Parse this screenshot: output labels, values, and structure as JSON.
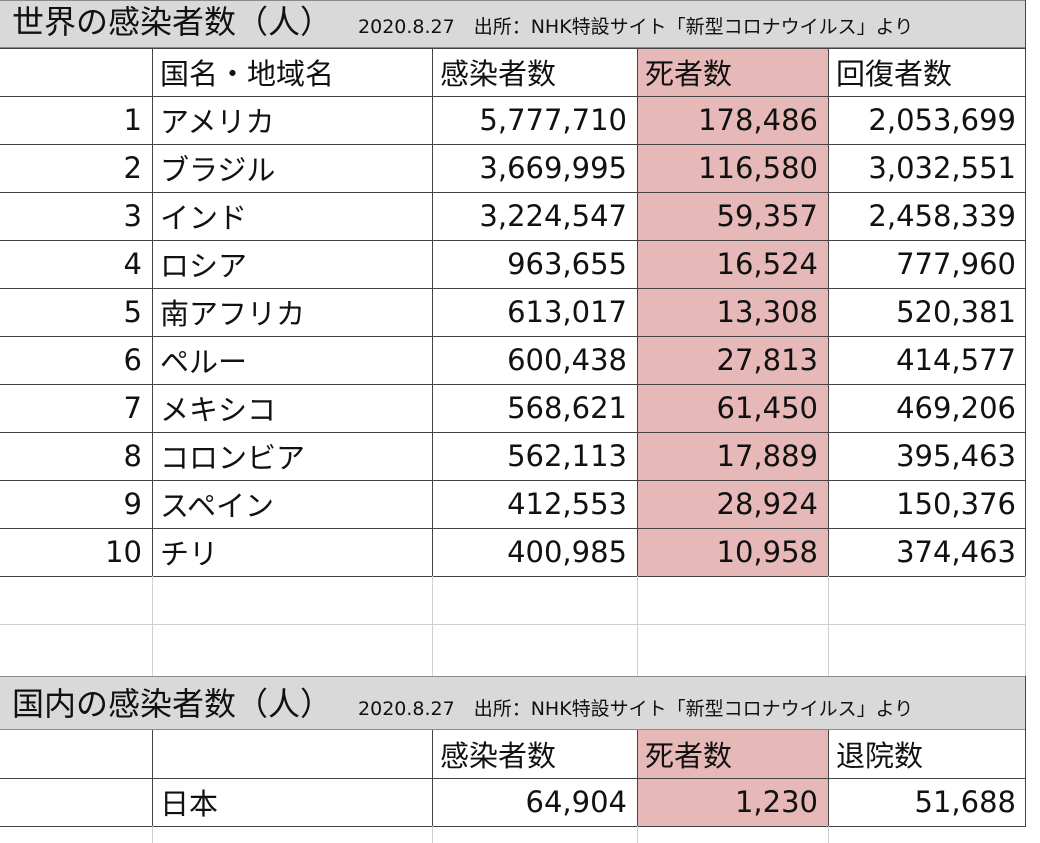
{
  "world": {
    "title": "世界の感染者数（人）",
    "source": "2020.8.27　出所：NHK特設サイト「新型コロナウイルス」より",
    "headers": {
      "country": "国名・地域名",
      "cases": "感染者数",
      "deaths": "死者数",
      "recovered": "回復者数"
    },
    "rows": [
      {
        "rank": "1",
        "country": "アメリカ",
        "cases": "5,777,710",
        "deaths": "178,486",
        "recovered": "2,053,699"
      },
      {
        "rank": "2",
        "country": "ブラジル",
        "cases": "3,669,995",
        "deaths": "116,580",
        "recovered": "3,032,551"
      },
      {
        "rank": "3",
        "country": "インド",
        "cases": "3,224,547",
        "deaths": "59,357",
        "recovered": "2,458,339"
      },
      {
        "rank": "4",
        "country": "ロシア",
        "cases": "963,655",
        "deaths": "16,524",
        "recovered": "777,960"
      },
      {
        "rank": "5",
        "country": "南アフリカ",
        "cases": "613,017",
        "deaths": "13,308",
        "recovered": "520,381"
      },
      {
        "rank": "6",
        "country": "ペルー",
        "cases": "600,438",
        "deaths": "27,813",
        "recovered": "414,577"
      },
      {
        "rank": "7",
        "country": "メキシコ",
        "cases": "568,621",
        "deaths": "61,450",
        "recovered": "469,206"
      },
      {
        "rank": "8",
        "country": "コロンビア",
        "cases": "562,113",
        "deaths": "17,889",
        "recovered": "395,463"
      },
      {
        "rank": "9",
        "country": "スペイン",
        "cases": "412,553",
        "deaths": "28,924",
        "recovered": "150,376"
      },
      {
        "rank": "10",
        "country": "チリ",
        "cases": "400,985",
        "deaths": "10,958",
        "recovered": "374,463"
      }
    ]
  },
  "japan": {
    "title": "国内の感染者数（人）",
    "source": "2020.8.27　出所：NHK特設サイト「新型コロナウイルス」より",
    "headers": {
      "cases": "感染者数",
      "deaths": "死者数",
      "discharged": "退院数"
    },
    "row": {
      "country": "日本",
      "cases": "64,904",
      "deaths": "1,230",
      "discharged": "51,688"
    }
  },
  "colors": {
    "header_fill": "#d9d9d9",
    "deaths_fill": "#e6b9b8",
    "grid": "#444444",
    "empty_grid": "#d0d0d0"
  }
}
